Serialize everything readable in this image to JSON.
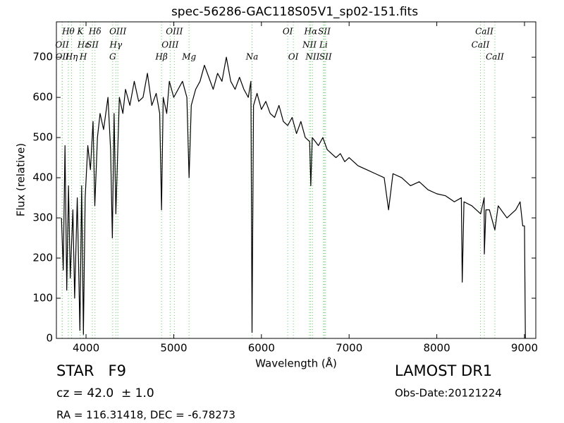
{
  "chart_data": {
    "type": "line",
    "title": "spec-56286-GAC118S05V1_sp02-151.fits",
    "x_label": "Wavelength (Å)",
    "y_label": "Flux (relative)",
    "x": [
      3720,
      3740,
      3760,
      3780,
      3800,
      3820,
      3850,
      3870,
      3900,
      3930,
      3950,
      3970,
      3990,
      4020,
      4050,
      4080,
      4100,
      4130,
      4160,
      4200,
      4250,
      4280,
      4300,
      4320,
      4340,
      4380,
      4420,
      4450,
      4500,
      4550,
      4600,
      4650,
      4700,
      4750,
      4800,
      4840,
      4861,
      4880,
      4920,
      4950,
      5000,
      5050,
      5100,
      5150,
      5175,
      5200,
      5250,
      5300,
      5350,
      5400,
      5450,
      5500,
      5550,
      5600,
      5650,
      5700,
      5750,
      5800,
      5850,
      5880,
      5893,
      5910,
      5950,
      6000,
      6050,
      6100,
      6150,
      6200,
      6250,
      6300,
      6350,
      6400,
      6450,
      6500,
      6550,
      6563,
      6580,
      6650,
      6700,
      6750,
      6800,
      6850,
      6900,
      6950,
      7000,
      7100,
      7200,
      7300,
      7400,
      7450,
      7500,
      7600,
      7700,
      7800,
      7900,
      8000,
      8100,
      8200,
      8280,
      8290,
      8310,
      8400,
      8500,
      8540,
      8542,
      8560,
      8600,
      8662,
      8700,
      8800,
      8900,
      8950,
      8980,
      9000,
      9010
    ],
    "series": [
      {
        "color": "#000000",
        "values": [
          300,
          170,
          480,
          120,
          380,
          150,
          320,
          100,
          350,
          20,
          380,
          10,
          350,
          480,
          420,
          540,
          330,
          500,
          560,
          520,
          600,
          470,
          250,
          560,
          310,
          600,
          560,
          620,
          580,
          640,
          590,
          600,
          660,
          580,
          610,
          560,
          320,
          600,
          560,
          640,
          600,
          620,
          640,
          600,
          400,
          580,
          620,
          640,
          680,
          650,
          620,
          660,
          640,
          700,
          640,
          620,
          650,
          620,
          600,
          640,
          15,
          580,
          610,
          570,
          590,
          560,
          550,
          580,
          540,
          530,
          550,
          510,
          540,
          500,
          490,
          380,
          500,
          480,
          500,
          470,
          460,
          450,
          460,
          440,
          450,
          430,
          420,
          410,
          400,
          320,
          410,
          400,
          380,
          390,
          370,
          360,
          355,
          340,
          350,
          140,
          340,
          330,
          310,
          350,
          210,
          320,
          320,
          270,
          330,
          300,
          320,
          340,
          280,
          280,
          0
        ]
      }
    ],
    "xlim": [
      3662,
      9129
    ],
    "ylim": [
      0,
      788
    ],
    "xticks": [
      4000,
      5000,
      6000,
      7000,
      8000,
      9000
    ],
    "yticks": [
      0,
      100,
      200,
      300,
      400,
      500,
      600,
      700
    ],
    "grid": false,
    "line_marker_color": "#66cc66",
    "spectral_lines": [
      {
        "label": "Hθ",
        "wavelength": 3798
      },
      {
        "label": "K",
        "wavelength": 3934
      },
      {
        "label": "Hδ",
        "wavelength": 4102
      },
      {
        "label": "OIII",
        "wavelength": 4363
      },
      {
        "label": "OIII",
        "wavelength": 5007
      },
      {
        "label": "OI",
        "wavelength": 6300
      },
      {
        "label": "Hα",
        "wavelength": 6563
      },
      {
        "label": "SII",
        "wavelength": 6717
      },
      {
        "label": "CaII",
        "wavelength": 8542
      },
      {
        "label": "OII",
        "wavelength": 3727
      },
      {
        "label": "Hε",
        "wavelength": 3970
      },
      {
        "label": "SII",
        "wavelength": 4072
      },
      {
        "label": "Hγ",
        "wavelength": 4340
      },
      {
        "label": "OIII",
        "wavelength": 4959
      },
      {
        "label": "NII",
        "wavelength": 6548
      },
      {
        "label": "Li",
        "wavelength": 6708
      },
      {
        "label": "CaII",
        "wavelength": 8498
      },
      {
        "label": "OII",
        "wavelength": 3729
      },
      {
        "label": "Hη",
        "wavelength": 3835
      },
      {
        "label": "H",
        "wavelength": 3968
      },
      {
        "label": "G",
        "wavelength": 4304
      },
      {
        "label": "Hβ",
        "wavelength": 4861
      },
      {
        "label": "Mg",
        "wavelength": 5175
      },
      {
        "label": "Na",
        "wavelength": 5893
      },
      {
        "label": "OI",
        "wavelength": 6364
      },
      {
        "label": "NII",
        "wavelength": 6583
      },
      {
        "label": "SII",
        "wavelength": 6731
      },
      {
        "label": "CaII",
        "wavelength": 8662
      }
    ],
    "annotations": {
      "object_class": "STAR   F9",
      "redshift": "cz = 42.0  ± 1.0",
      "coordinates": "RA = 116.31418, DEC = -6.78273",
      "survey": "LAMOST DR1",
      "obs_date": "Obs-Date:20121224"
    }
  }
}
